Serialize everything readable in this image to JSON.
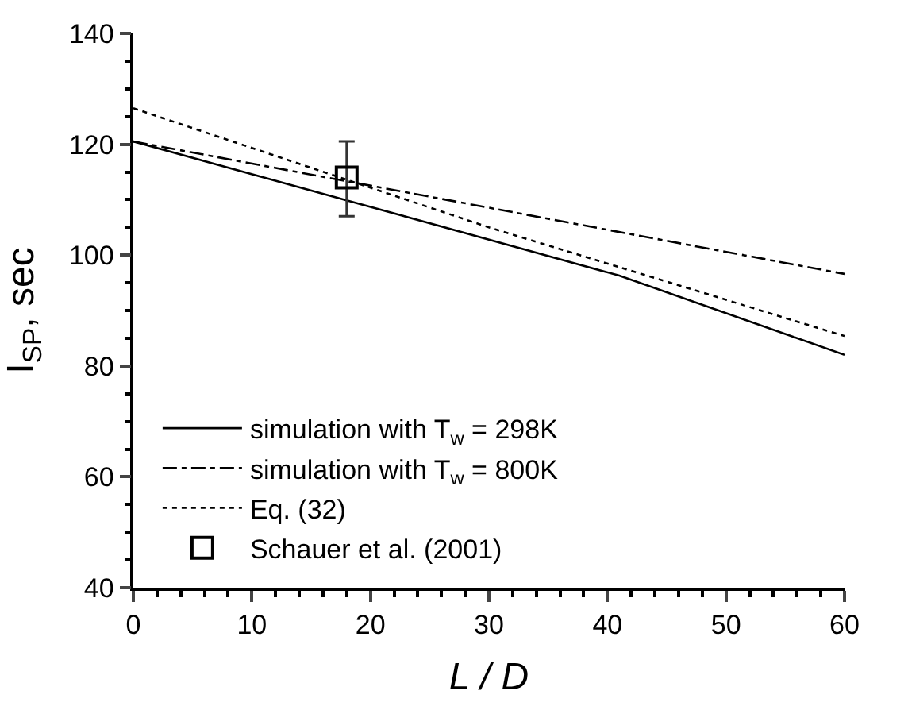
{
  "chart_data": {
    "type": "line",
    "xlabel": "L / D",
    "ylabel": "I$_{SP}$, sec",
    "xlim": [
      0,
      60
    ],
    "xticks": [
      0,
      10,
      20,
      30,
      40,
      50,
      60
    ],
    "ylim": [
      40,
      140
    ],
    "yticks": [
      40,
      60,
      80,
      100,
      120,
      140
    ],
    "legend": "bottom left",
    "marker": "none",
    "series": [
      {
        "name": "simulation with T$_{w}$ = 298K",
        "color": "#000000",
        "line_style": "solid",
        "x": [
          0,
          41,
          60
        ],
        "values": [
          120.5,
          96.3,
          82
        ]
      },
      {
        "name": "simulation with T$_{w}$ = 800K",
        "color": "#000000",
        "line_style": "dashdot",
        "x": [
          0,
          60
        ],
        "values": [
          120.5,
          96.6
        ]
      },
      {
        "name": "Eq. (32)",
        "color": "#000000",
        "line_style": "dotted",
        "x": [
          0,
          30,
          60
        ],
        "values": [
          126.5,
          105,
          85.4
        ]
      },
      {
        "name": "Schauer et al. (2001)",
        "type": "scatter",
        "marker": "square",
        "color": "#000000",
        "x": [
          18
        ],
        "values": [
          114
        ],
        "errors": [
          [
            107,
            120.5
          ]
        ]
      }
    ]
  }
}
